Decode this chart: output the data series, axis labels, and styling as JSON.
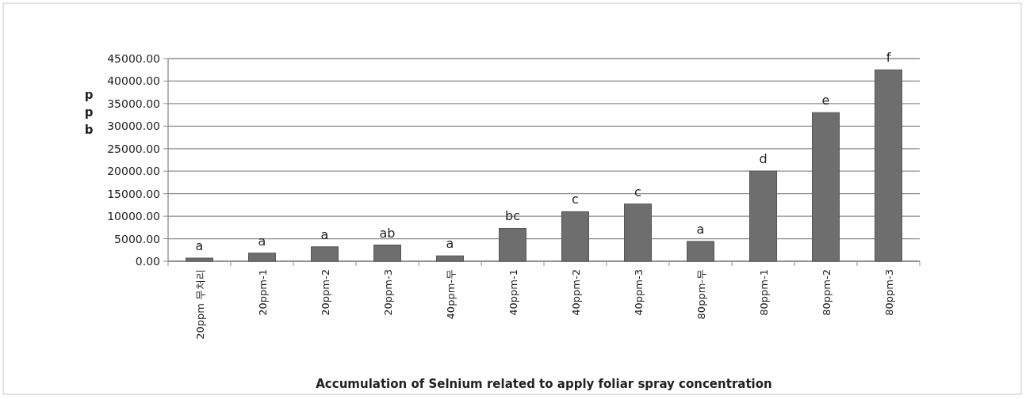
{
  "chart_data": {
    "type": "bar",
    "xlabel": "Accumulation of Selnium related to apply foliar spray concentration",
    "ylabel": "ppb",
    "categories": [
      "20ppm 무처리",
      "20ppm-1",
      "20ppm-2",
      "20ppm-3",
      "40ppm-무",
      "40ppm-1",
      "40ppm-2",
      "40ppm-3",
      "80ppm-무",
      "80ppm-1",
      "80ppm-2",
      "80ppm-3"
    ],
    "values": [
      700,
      1800,
      3200,
      3600,
      1200,
      7300,
      11000,
      12700,
      4400,
      20000,
      33000,
      42500
    ],
    "color": "#6e6e6e",
    "ylim": [
      0,
      45000
    ],
    "yticks": [
      {
        "value": 0,
        "label": "0.00"
      },
      {
        "value": 5000,
        "label": "5000.00"
      },
      {
        "value": 10000,
        "label": "10000.00"
      },
      {
        "value": 15000,
        "label": "15000.00"
      },
      {
        "value": 20000,
        "label": "20000.00"
      },
      {
        "value": 25000,
        "label": "25000.00"
      },
      {
        "value": 30000,
        "label": "30000.00"
      },
      {
        "value": 35000,
        "label": "35000.00"
      },
      {
        "value": 40000,
        "label": "40000.00"
      },
      {
        "value": 45000,
        "label": "45000.00"
      }
    ],
    "grid": "y",
    "annotations": [
      {
        "text": "a",
        "x": "20ppm 무처리",
        "y": 700
      },
      {
        "text": "a",
        "x": "20ppm-1",
        "y": 1800
      },
      {
        "text": "a",
        "x": "20ppm-2",
        "y": 3200
      },
      {
        "text": "ab",
        "x": "20ppm-3",
        "y": 3600
      },
      {
        "text": "a",
        "x": "40ppm-무",
        "y": 1200
      },
      {
        "text": "bc",
        "x": "40ppm-1",
        "y": 7300
      },
      {
        "text": "c",
        "x": "40ppm-2",
        "y": 11000
      },
      {
        "text": "c",
        "x": "40ppm-3",
        "y": 12700
      },
      {
        "text": "a",
        "x": "80ppm-무",
        "y": 4400
      },
      {
        "text": "d",
        "x": "80ppm-1",
        "y": 20000
      },
      {
        "text": "e",
        "x": "80ppm-2",
        "y": 33000
      },
      {
        "text": "f",
        "x": "80ppm-3",
        "y": 42500
      }
    ]
  }
}
